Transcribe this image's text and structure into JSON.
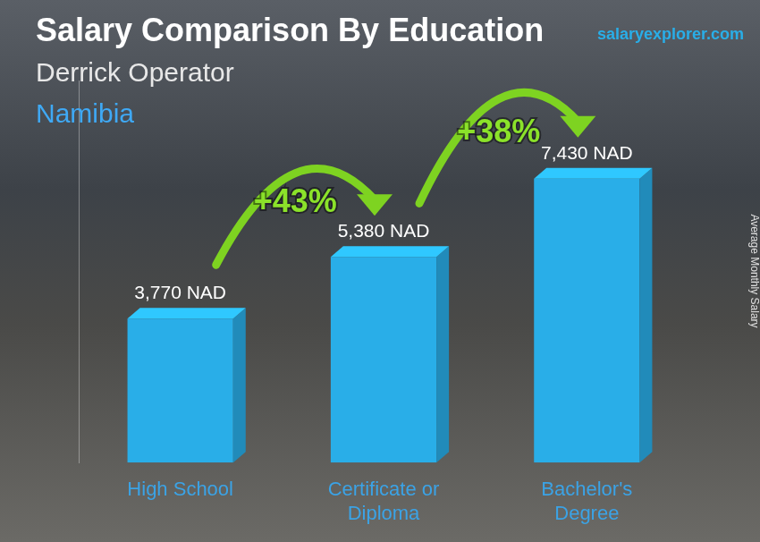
{
  "chart_data": {
    "type": "bar",
    "title": "Salary Comparison By Education",
    "subtitle": [
      "Derrick Operator",
      "Namibia"
    ],
    "source": "salaryexplorer.com",
    "ylabel": "Average Monthly Salary",
    "categories": [
      "High School",
      "Certificate or Diploma",
      "Bachelor's Degree"
    ],
    "values": [
      3770,
      5380,
      7430
    ],
    "value_labels": [
      "3,770 NAD",
      "5,380 NAD",
      "7,430 NAD"
    ],
    "change_labels": [
      "+43%",
      "+38%"
    ],
    "color": "#29aee8",
    "ylim": [
      0,
      10000
    ],
    "data_labels": true,
    "tick_labels": "x",
    "grid": false
  }
}
